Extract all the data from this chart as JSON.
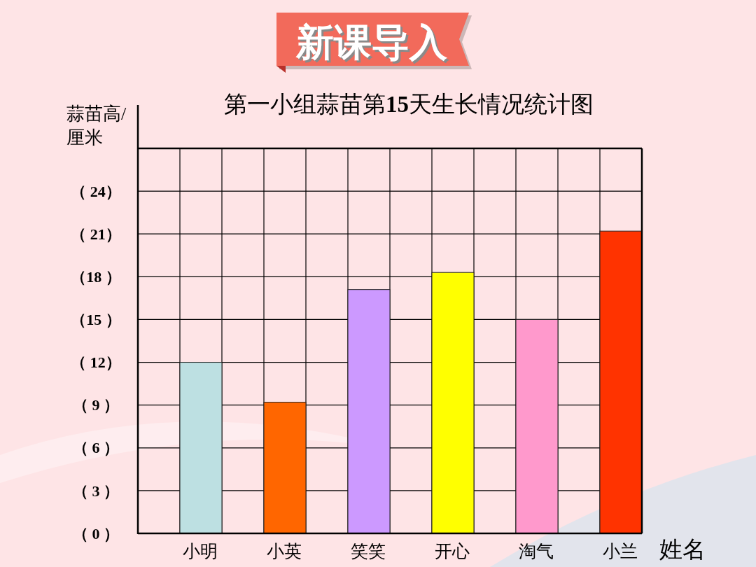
{
  "chart_data": {
    "type": "bar",
    "title": "第一小组蒜苗第15天生长情况统计图",
    "annotations": [
      "新课导入"
    ],
    "xlabel": "姓名",
    "ylabel": "蒜苗高/厘米",
    "categories": [
      "小明",
      "小英",
      "笑笑",
      "开心",
      "淘气",
      "小兰"
    ],
    "values": [
      12,
      9.2,
      17.1,
      18.3,
      15,
      21.2
    ],
    "colors": [
      "#bde0e2",
      "#ff6600",
      "#cc99ff",
      "#ffff00",
      "#ff99cc",
      "#ff3300"
    ],
    "ylim": [
      0,
      27
    ],
    "yticks": [
      {
        "value": 0,
        "label": "（ 0 ）"
      },
      {
        "value": 3,
        "label": "（ 3 ）"
      },
      {
        "value": 6,
        "label": "（ 6 ）"
      },
      {
        "value": 9,
        "label": "（ 9 ）"
      },
      {
        "value": 12,
        "label": "（ 12）"
      },
      {
        "value": 15,
        "label": "（15 ）"
      },
      {
        "value": 18,
        "label": "（18 ）"
      },
      {
        "value": 21,
        "label": "（ 21）"
      },
      {
        "value": 24,
        "label": "（ 24）"
      }
    ],
    "grid": true
  }
}
